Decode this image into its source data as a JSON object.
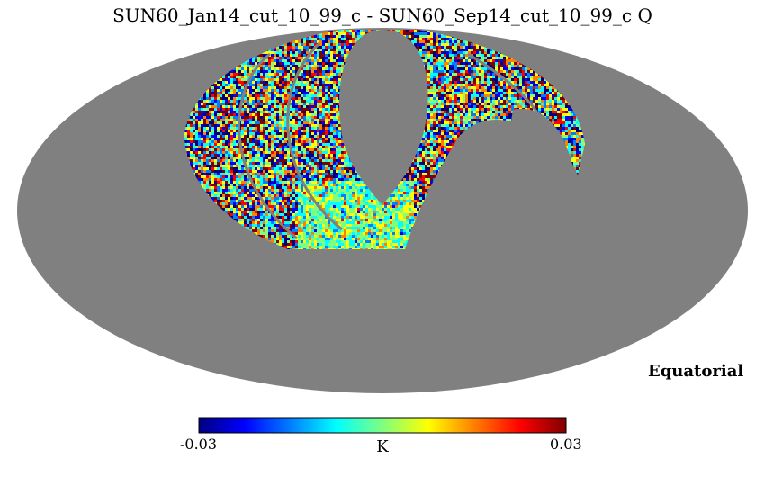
{
  "chart_data": {
    "type": "heatmap",
    "projection": "mollweide",
    "title": "SUN60_Jan14_cut_10_99_c - SUN60_Sep14_cut_10_99_c Q",
    "coordinate_system": "Equatorial",
    "colormap": "jet",
    "colorbar": {
      "min": -0.03,
      "max": 0.03,
      "min_label": "-0.03",
      "max_label": "0.03",
      "unit": "K"
    },
    "bad_value_color": "#808080",
    "colors": {
      "jet": [
        "#00007f",
        "#0000ff",
        "#007fff",
        "#00ffff",
        "#7fff7f",
        "#ffff00",
        "#ff7f00",
        "#ff0000",
        "#7f0000"
      ]
    }
  }
}
